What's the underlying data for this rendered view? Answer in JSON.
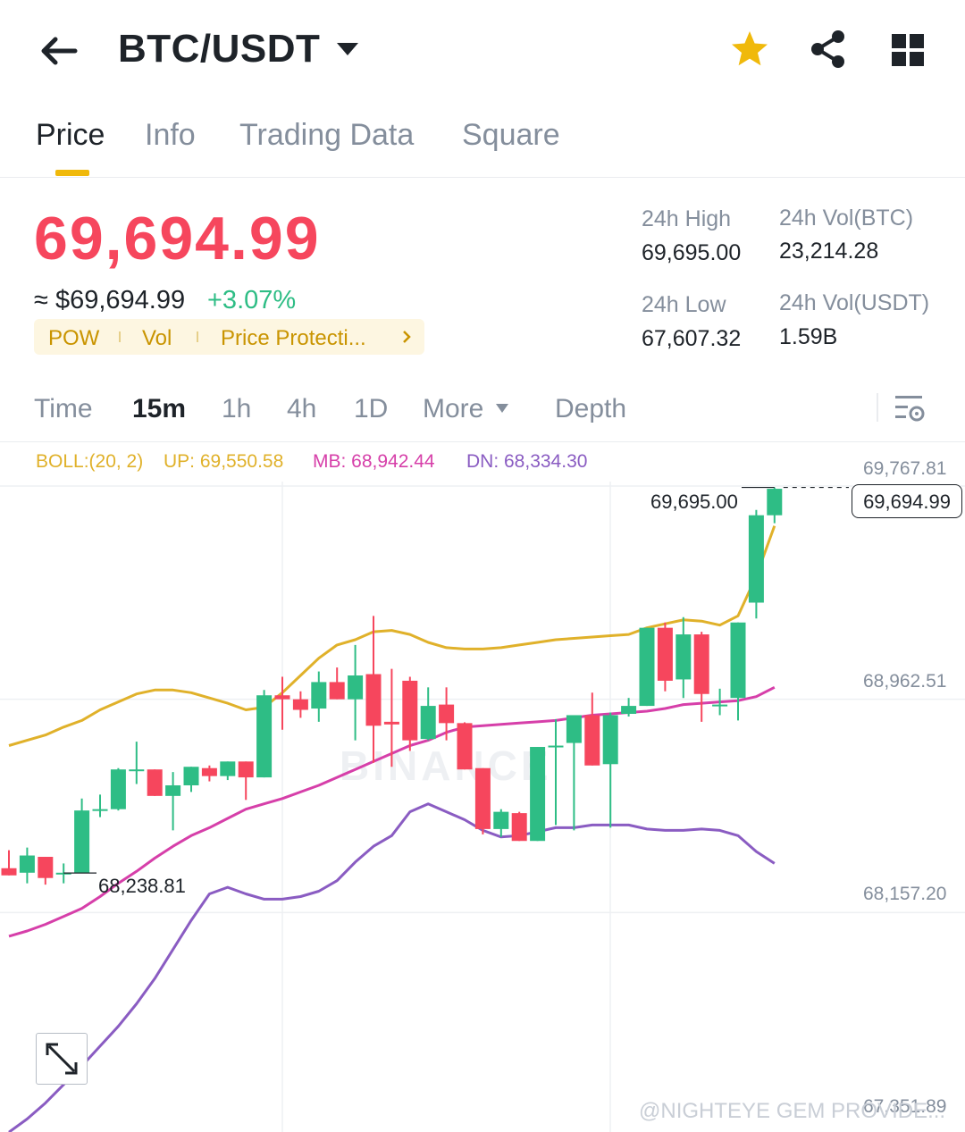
{
  "header": {
    "pair": "BTC/USDT",
    "icons": [
      "back-arrow-icon",
      "caret-down-icon",
      "star-icon",
      "share-icon",
      "grid-icon"
    ]
  },
  "tabs": [
    {
      "label": "Price",
      "active": true
    },
    {
      "label": "Info",
      "active": false
    },
    {
      "label": "Trading Data",
      "active": false
    },
    {
      "label": "Square",
      "active": false
    }
  ],
  "price": {
    "last": "69,694.99",
    "fiat": "≈ $69,694.99",
    "change": "+3.07%",
    "tags": [
      "POW",
      "Vol",
      "Price Protecti..."
    ]
  },
  "stats": {
    "high_label": "24h High",
    "high_value": "69,695.00",
    "low_label": "24h Low",
    "low_value": "67,607.32",
    "vol_btc_label": "24h Vol(BTC)",
    "vol_btc_value": "23,214.28",
    "vol_usdt_label": "24h Vol(USDT)",
    "vol_usdt_value": "1.59B"
  },
  "intervals": {
    "items": [
      "Time",
      "15m",
      "1h",
      "4h",
      "1D",
      "More",
      "Depth"
    ],
    "active": "15m"
  },
  "indicator": {
    "name": "BOLL:(20, 2)",
    "up": "UP: 69,550.58",
    "mb": "MB: 68,942.44",
    "dn": "DN: 68,334.30"
  },
  "colors": {
    "up": "#2ebd85",
    "down": "#f6465d",
    "accent": "#f0b90b",
    "boll_up": "#e0b12a",
    "boll_mb": "#d63fa9",
    "boll_dn": "#8a5cc2"
  },
  "chart_data": {
    "type": "candlestick",
    "y_ticks": [
      "69,767.81",
      "68,962.51",
      "68,157.20",
      "67,351.89"
    ],
    "ylim": [
      67351.89,
      69767.81
    ],
    "current_price_label": "69,694.99",
    "high_marker": "69,695.00",
    "low_marker": "68,238.81",
    "candles": [
      {
        "o": 68257,
        "h": 68325,
        "c": 68230,
        "l": 68230
      },
      {
        "o": 68240,
        "h": 68335,
        "c": 68305,
        "l": 68200
      },
      {
        "o": 68300,
        "h": 68300,
        "c": 68220,
        "l": 68195
      },
      {
        "o": 68240,
        "h": 68275,
        "c": 68240,
        "l": 68200
      },
      {
        "o": 68240,
        "h": 68520,
        "c": 68475,
        "l": 68240
      },
      {
        "o": 68475,
        "h": 68535,
        "c": 68480,
        "l": 68450
      },
      {
        "o": 68480,
        "h": 68635,
        "c": 68630,
        "l": 68475
      },
      {
        "o": 68625,
        "h": 68735,
        "c": 68630,
        "l": 68575
      },
      {
        "o": 68630,
        "h": 68628,
        "c": 68530,
        "l": 68530
      },
      {
        "o": 68530,
        "h": 68620,
        "c": 68570,
        "l": 68400
      },
      {
        "o": 68570,
        "h": 68620,
        "c": 68640,
        "l": 68545
      },
      {
        "o": 68635,
        "h": 68645,
        "c": 68605,
        "l": 68585
      },
      {
        "o": 68605,
        "h": 68660,
        "c": 68660,
        "l": 68590
      },
      {
        "o": 68660,
        "h": 68660,
        "c": 68600,
        "l": 68515
      },
      {
        "o": 68600,
        "h": 68930,
        "c": 68910,
        "l": 68600
      },
      {
        "o": 68910,
        "h": 68980,
        "c": 68895,
        "l": 68780
      },
      {
        "o": 68895,
        "h": 68925,
        "c": 68855,
        "l": 68825
      },
      {
        "o": 68860,
        "h": 69000,
        "c": 68960,
        "l": 68810
      },
      {
        "o": 68960,
        "h": 69015,
        "c": 68895,
        "l": 68895
      },
      {
        "o": 68895,
        "h": 69100,
        "c": 68985,
        "l": 68740
      },
      {
        "o": 68990,
        "h": 69210,
        "c": 68795,
        "l": 68655
      },
      {
        "o": 68810,
        "h": 69010,
        "c": 68800,
        "l": 68640
      },
      {
        "o": 68965,
        "h": 68980,
        "c": 68740,
        "l": 68700
      },
      {
        "o": 68745,
        "h": 68940,
        "c": 68870,
        "l": 68740
      },
      {
        "o": 68875,
        "h": 68940,
        "c": 68805,
        "l": 68740
      },
      {
        "o": 68805,
        "h": 68808,
        "c": 68630,
        "l": 68630
      },
      {
        "o": 68635,
        "h": 68635,
        "c": 68405,
        "l": 68385
      },
      {
        "o": 68405,
        "h": 68480,
        "c": 68470,
        "l": 68375
      },
      {
        "o": 68465,
        "h": 68470,
        "c": 68360,
        "l": 68360
      },
      {
        "o": 68360,
        "h": 68715,
        "c": 68715,
        "l": 68360
      },
      {
        "o": 68715,
        "h": 68820,
        "c": 68720,
        "l": 68420
      },
      {
        "o": 68730,
        "h": 68835,
        "c": 68835,
        "l": 68400
      },
      {
        "o": 68835,
        "h": 68920,
        "c": 68645,
        "l": 68645
      },
      {
        "o": 68650,
        "h": 68845,
        "c": 68835,
        "l": 68410
      },
      {
        "o": 68840,
        "h": 68900,
        "c": 68870,
        "l": 68830
      },
      {
        "o": 68870,
        "h": 69165,
        "c": 69165,
        "l": 68870
      },
      {
        "o": 69165,
        "h": 69185,
        "c": 68965,
        "l": 68925
      },
      {
        "o": 68970,
        "h": 69205,
        "c": 69140,
        "l": 68900
      },
      {
        "o": 69140,
        "h": 69150,
        "c": 68915,
        "l": 68810
      },
      {
        "o": 68875,
        "h": 68935,
        "c": 68875,
        "l": 68835
      },
      {
        "o": 68900,
        "h": 69185,
        "c": 69185,
        "l": 68815
      },
      {
        "o": 69260,
        "h": 69610,
        "c": 69590,
        "l": 69200
      },
      {
        "o": 69590,
        "h": 69695,
        "c": 69690,
        "l": 69560
      }
    ],
    "boll_up": [
      68720,
      68740,
      68760,
      68790,
      68815,
      68855,
      68885,
      68915,
      68930,
      68930,
      68920,
      68900,
      68880,
      68855,
      68865,
      68920,
      68985,
      69050,
      69100,
      69120,
      69150,
      69155,
      69140,
      69110,
      69090,
      69085,
      69085,
      69090,
      69100,
      69110,
      69120,
      69125,
      69130,
      69135,
      69140,
      69165,
      69180,
      69195,
      69190,
      69175,
      69210,
      69360,
      69550
    ],
    "boll_mb": [
      68000,
      68020,
      68045,
      68075,
      68105,
      68150,
      68200,
      68245,
      68295,
      68340,
      68380,
      68410,
      68445,
      68480,
      68500,
      68520,
      68545,
      68570,
      68600,
      68630,
      68660,
      68690,
      68720,
      68740,
      68770,
      68790,
      68795,
      68800,
      68805,
      68810,
      68815,
      68825,
      68835,
      68840,
      68845,
      68850,
      68860,
      68875,
      68880,
      68885,
      68890,
      68905,
      68940
    ],
    "boll_dn": [
      67260,
      67310,
      67370,
      67440,
      67510,
      67585,
      67660,
      67745,
      67840,
      67950,
      68060,
      68160,
      68185,
      68160,
      68140,
      68140,
      68150,
      68170,
      68210,
      68280,
      68340,
      68380,
      68470,
      68500,
      68470,
      68440,
      68400,
      68375,
      68380,
      68395,
      68410,
      68410,
      68420,
      68420,
      68420,
      68405,
      68400,
      68400,
      68405,
      68400,
      68380,
      68320,
      68275
    ]
  },
  "watermark": "@NIGHTEYE GEM PROVIDE...",
  "watermark_center": "BINANCE"
}
